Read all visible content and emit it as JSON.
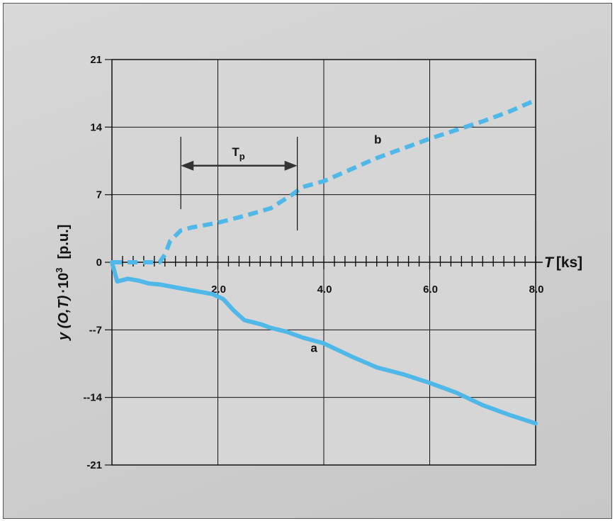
{
  "chart_data": {
    "type": "line",
    "title": "",
    "xlabel_italic": "T",
    "xlabel_unit": "[ks]",
    "ylabel_italic": "y (O,T)",
    "ylabel_mid": "·10",
    "ylabel_exp": "3",
    "ylabel_unit": "[p.u.]",
    "xlim": [
      0,
      8.0
    ],
    "ylim": [
      -21,
      21
    ],
    "x_ticks": [
      2.0,
      4.0,
      6.0,
      8.0
    ],
    "x_tick_labels": [
      "2.0",
      "4.0",
      "6.0",
      "8.0"
    ],
    "y_ticks": [
      21,
      14,
      7,
      0,
      -7,
      -14,
      -21
    ],
    "y_tick_labels": [
      "21",
      "14",
      "7",
      "0",
      "--7",
      "--14",
      "-21"
    ],
    "grid": true,
    "color": "#4fb8e8",
    "series": [
      {
        "name": "a",
        "style": "solid",
        "points": [
          [
            0.0,
            0.0
          ],
          [
            0.1,
            -2.0
          ],
          [
            0.3,
            -1.7
          ],
          [
            0.5,
            -1.9
          ],
          [
            0.7,
            -2.2
          ],
          [
            0.9,
            -2.3
          ],
          [
            1.1,
            -2.5
          ],
          [
            1.3,
            -2.7
          ],
          [
            1.5,
            -2.9
          ],
          [
            1.7,
            -3.1
          ],
          [
            1.9,
            -3.3
          ],
          [
            2.1,
            -3.8
          ],
          [
            2.3,
            -5.0
          ],
          [
            2.5,
            -6.0
          ],
          [
            2.8,
            -6.4
          ],
          [
            3.0,
            -6.8
          ],
          [
            3.3,
            -7.2
          ],
          [
            3.6,
            -7.8
          ],
          [
            4.0,
            -8.4
          ],
          [
            4.5,
            -9.7
          ],
          [
            5.0,
            -10.9
          ],
          [
            5.5,
            -11.6
          ],
          [
            6.0,
            -12.5
          ],
          [
            6.5,
            -13.5
          ],
          [
            7.0,
            -14.8
          ],
          [
            7.5,
            -15.8
          ],
          [
            8.0,
            -16.7
          ]
        ]
      },
      {
        "name": "b",
        "style": "dashed",
        "points": [
          [
            0.0,
            0.0
          ],
          [
            0.5,
            0.0
          ],
          [
            0.9,
            0.0
          ],
          [
            1.0,
            0.8
          ],
          [
            1.1,
            2.2
          ],
          [
            1.3,
            3.3
          ],
          [
            1.5,
            3.6
          ],
          [
            2.0,
            4.1
          ],
          [
            2.5,
            4.8
          ],
          [
            3.0,
            5.6
          ],
          [
            3.4,
            7.0
          ],
          [
            3.6,
            7.8
          ],
          [
            4.0,
            8.4
          ],
          [
            4.5,
            9.6
          ],
          [
            5.0,
            10.8
          ],
          [
            5.5,
            11.8
          ],
          [
            6.0,
            12.8
          ],
          [
            6.5,
            13.7
          ],
          [
            7.0,
            14.6
          ],
          [
            7.5,
            15.6
          ],
          [
            8.0,
            16.8
          ]
        ]
      }
    ],
    "annotations": {
      "tp_label_main": "T",
      "tp_label_sub": "p",
      "tp_span": [
        1.3,
        3.5
      ],
      "tp_y": 10.0,
      "tp_ext_bottom": 5.5,
      "tp_ext_top": 13.0
    }
  }
}
